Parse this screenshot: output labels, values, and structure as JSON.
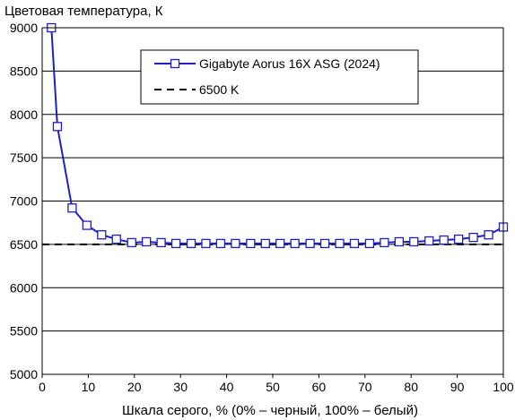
{
  "chart_data": {
    "type": "line",
    "title": "",
    "ylabel": "Цветовая температура, К",
    "xlabel": "Шкала серого, % (0% – черный, 100% – белый)",
    "xlim": [
      0,
      100
    ],
    "ylim": [
      5000,
      9000
    ],
    "xticks": [
      0,
      10,
      20,
      30,
      40,
      50,
      60,
      70,
      80,
      90,
      100
    ],
    "yticks": [
      5000,
      5500,
      6000,
      6500,
      7000,
      7500,
      8000,
      8500,
      9000
    ],
    "grid": "horizontal",
    "legend_position": "top-center",
    "series": [
      {
        "name": "Gigabyte Aorus 16X ASG (2024)",
        "color": "#1f1fc8",
        "marker": "square-open",
        "x": [
          2,
          3.3,
          6.5,
          9.7,
          12.9,
          16.1,
          19.4,
          22.6,
          25.8,
          29,
          32.3,
          35.5,
          38.7,
          41.9,
          45.2,
          48.4,
          51.6,
          54.8,
          58.1,
          61.3,
          64.5,
          67.7,
          71,
          74.2,
          77.4,
          80.6,
          83.9,
          87.1,
          90.3,
          93.5,
          96.8,
          100
        ],
        "y": [
          9000,
          7860,
          6920,
          6720,
          6610,
          6560,
          6520,
          6530,
          6520,
          6510,
          6510,
          6510,
          6510,
          6510,
          6510,
          6510,
          6510,
          6510,
          6510,
          6510,
          6510,
          6510,
          6510,
          6520,
          6530,
          6530,
          6540,
          6550,
          6560,
          6580,
          6610,
          6700
        ]
      },
      {
        "name": "6500 K",
        "color": "#000000",
        "dash": true,
        "x": [
          0,
          100
        ],
        "y": [
          6500,
          6500
        ]
      }
    ]
  }
}
